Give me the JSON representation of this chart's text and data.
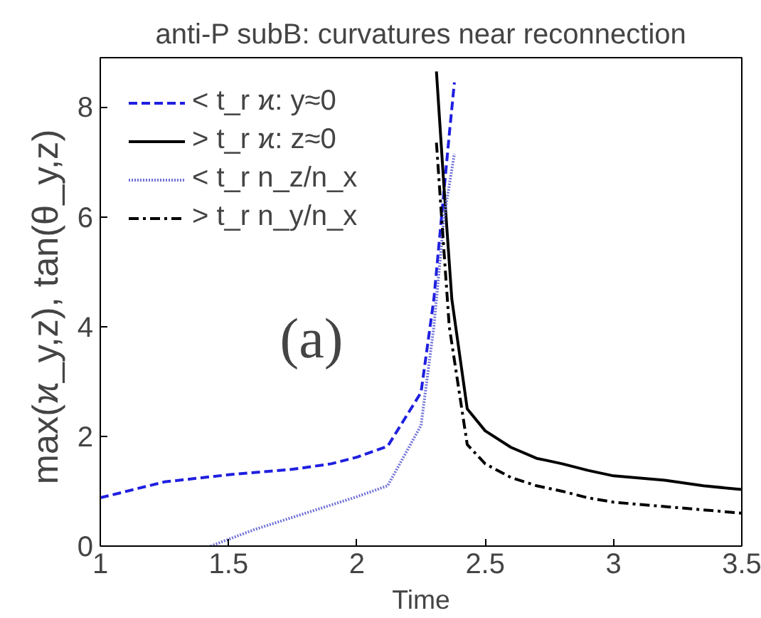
{
  "chart_data": {
    "type": "line",
    "title": "anti-P subB: curvatures near reconnection",
    "xlabel": "Time",
    "ylabel": "max(ϰ_y,z),  tan(θ_y,z)",
    "xlim": [
      1,
      3.5
    ],
    "xticks": [
      1,
      1.5,
      2,
      2.5,
      3,
      3.5
    ],
    "ylim": [
      0,
      8.9
    ],
    "yticks": [
      0,
      2,
      4,
      6,
      8
    ],
    "grid": false,
    "legend": "top left",
    "marker": "none",
    "annotations": [
      "(a)"
    ],
    "series": [
      {
        "name": "< t_r ϰ: y≈0",
        "color": "#1f1fe0",
        "line_style": "dashed",
        "x": [
          1,
          1.25,
          1.5,
          1.75,
          1.9,
          2.0,
          2.12,
          2.25,
          2.3,
          2.33,
          2.36,
          2.38
        ],
        "values": [
          0.88,
          1.17,
          1.3,
          1.4,
          1.5,
          1.62,
          1.82,
          2.8,
          4.5,
          6.0,
          7.5,
          8.45
        ]
      },
      {
        "name": "> t_r ϰ: z≈0",
        "color": "#000000",
        "line_style": "solid",
        "x": [
          2.31,
          2.34,
          2.37,
          2.43,
          2.5,
          2.6,
          2.7,
          2.8,
          2.9,
          3.0,
          3.2,
          3.35,
          3.5
        ],
        "values": [
          8.65,
          6.5,
          4.5,
          2.5,
          2.1,
          1.8,
          1.6,
          1.5,
          1.38,
          1.28,
          1.2,
          1.1,
          1.03
        ]
      },
      {
        "name": "< t_r n_z/n_x",
        "color": "#7070d8",
        "line_style": "dotted",
        "x": [
          1.43,
          1.6,
          1.8,
          2.0,
          2.12,
          2.25,
          2.3,
          2.34,
          2.38
        ],
        "values": [
          0,
          0.3,
          0.6,
          0.9,
          1.1,
          2.2,
          4.0,
          6.0,
          7.15
        ]
      },
      {
        "name": "> t_r n_y/n_x",
        "color": "#000000",
        "line_style": "dashdot",
        "x": [
          2.31,
          2.33,
          2.36,
          2.43,
          2.5,
          2.6,
          2.7,
          2.8,
          2.9,
          3.0,
          3.2,
          3.5
        ],
        "values": [
          7.35,
          6.0,
          4.0,
          1.85,
          1.5,
          1.25,
          1.1,
          1.0,
          0.88,
          0.8,
          0.72,
          0.6
        ]
      }
    ]
  }
}
